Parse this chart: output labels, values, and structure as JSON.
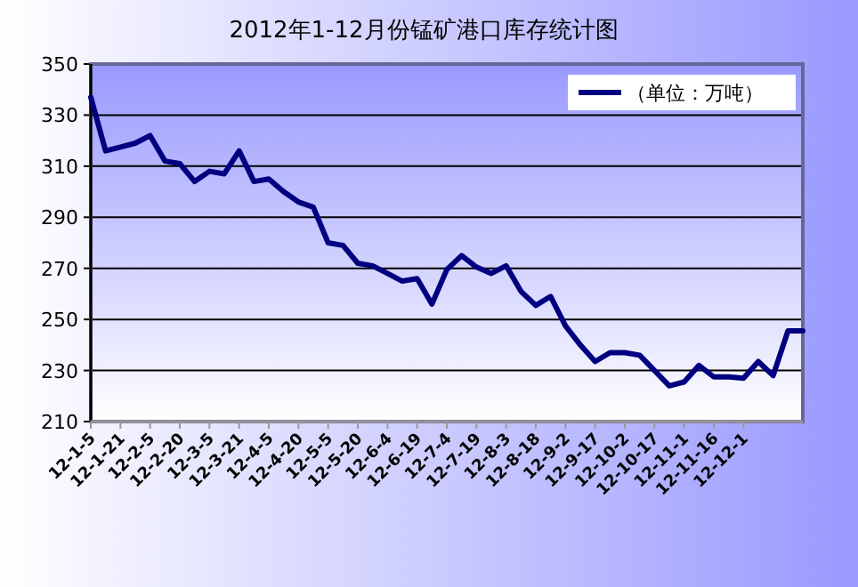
{
  "chart_data": {
    "type": "line",
    "title": "2012年1-12月份锰矿港口库存统计图",
    "categories": [
      "12-1-5",
      null,
      "12-1-21",
      null,
      "12-2-5",
      null,
      "12-2-20",
      null,
      "12-3-5",
      null,
      "12-3-21",
      null,
      "12-4-5",
      null,
      "12-4-20",
      null,
      "12-5-5",
      null,
      "12-5-20",
      null,
      "12-6-4",
      null,
      "12-6-19",
      null,
      "12-7-4",
      null,
      "12-7-19",
      null,
      "12-8-3",
      null,
      "12-8-18",
      null,
      "12-9-2",
      null,
      "12-9-17",
      null,
      "12-10-2",
      null,
      "12-10-17",
      null,
      "12-11-1",
      null,
      "12-11-16",
      null,
      "12-12-1",
      null,
      null,
      null,
      null
    ],
    "series": [
      {
        "name": "（单位：万吨）",
        "color": "#000080",
        "values": [
          337,
          316,
          317.5,
          319,
          322,
          312,
          311,
          304,
          308,
          307,
          316,
          304,
          305,
          300,
          296,
          294,
          280,
          279,
          272,
          271,
          268,
          265,
          266,
          256,
          269.5,
          275,
          270.5,
          268,
          271,
          261,
          255.5,
          259,
          247.5,
          240,
          233.5,
          237,
          237,
          236,
          230,
          224,
          225.5,
          232,
          227.5,
          227.5,
          227,
          233.5,
          228,
          245.5,
          245.5
        ]
      }
    ],
    "ylim": [
      210,
      350
    ],
    "yticks": [
      210,
      230,
      250,
      270,
      290,
      310,
      330,
      350
    ],
    "grid": "y",
    "legend": "top right"
  }
}
